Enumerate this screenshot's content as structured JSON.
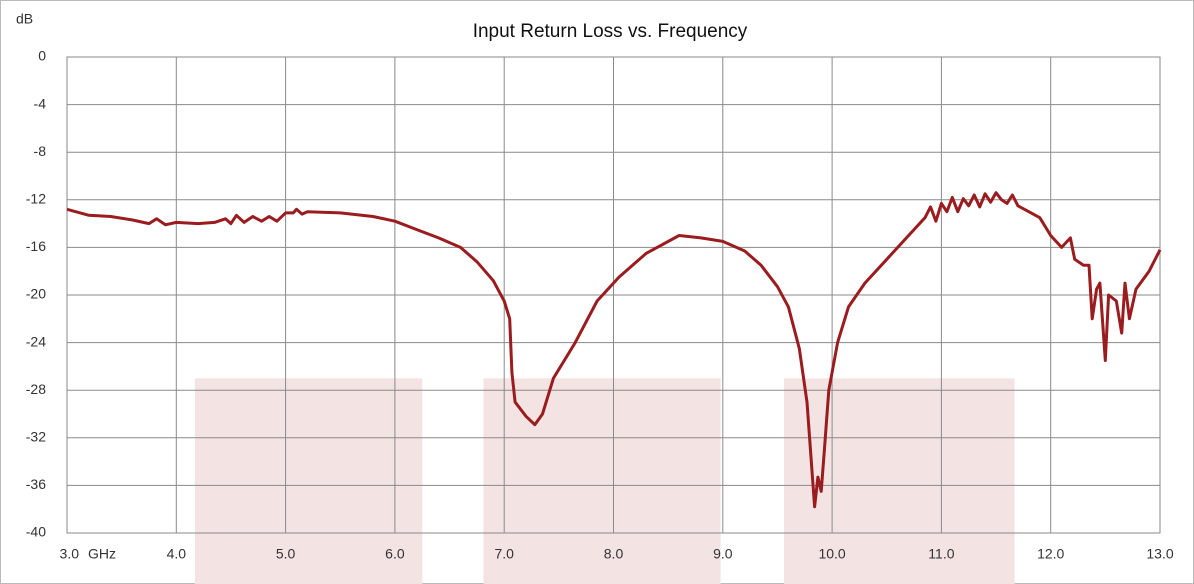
{
  "chart_data": {
    "type": "line",
    "title": "Input Return Loss vs. Frequency",
    "y_axis_label": "dB",
    "x_axis_label": "GHz",
    "xlim": [
      3,
      13
    ],
    "ylim": [
      -40,
      0
    ],
    "xticks": [
      {
        "value": 3,
        "label": "3.0"
      },
      {
        "value": 4,
        "label": "4.0"
      },
      {
        "value": 5,
        "label": "5.0"
      },
      {
        "value": 6,
        "label": "6.0"
      },
      {
        "value": 7,
        "label": "7.0"
      },
      {
        "value": 8,
        "label": "8.0"
      },
      {
        "value": 9,
        "label": "9.0"
      },
      {
        "value": 10,
        "label": "10.0"
      },
      {
        "value": 11,
        "label": "11.0"
      },
      {
        "value": 12,
        "label": "12.0"
      },
      {
        "value": 13,
        "label": "13.0"
      }
    ],
    "yticks": [
      0,
      -4,
      -8,
      -12,
      -16,
      -20,
      -24,
      -28,
      -32,
      -36,
      -40
    ],
    "grid": true,
    "shaded_regions": [
      {
        "x": [
          4.17,
          6.25
        ],
        "top": -27,
        "color": "#f3e3e3"
      },
      {
        "x": [
          6.81,
          8.98
        ],
        "top": -27,
        "color": "#f3e3e3"
      },
      {
        "x": [
          9.56,
          11.67
        ],
        "top": -27,
        "color": "#f3e3e3"
      }
    ],
    "series": [
      {
        "color": "#9b1c1f",
        "x": [
          3.0,
          3.2,
          3.4,
          3.6,
          3.75,
          3.82,
          3.9,
          4.0,
          4.2,
          4.35,
          4.45,
          4.5,
          4.55,
          4.62,
          4.7,
          4.78,
          4.85,
          4.92,
          5.0,
          5.07,
          5.1,
          5.15,
          5.2,
          5.5,
          5.8,
          6.0,
          6.2,
          6.4,
          6.6,
          6.75,
          6.9,
          7.0,
          7.05,
          7.07,
          7.1,
          7.2,
          7.28,
          7.35,
          7.45,
          7.65,
          7.85,
          8.05,
          8.3,
          8.6,
          8.8,
          9.0,
          9.2,
          9.35,
          9.5,
          9.6,
          9.7,
          9.77,
          9.84,
          9.87,
          9.9,
          9.93,
          9.97,
          10.05,
          10.15,
          10.3,
          10.5,
          10.7,
          10.85,
          10.9,
          10.95,
          11.0,
          11.05,
          11.1,
          11.15,
          11.2,
          11.25,
          11.3,
          11.35,
          11.4,
          11.45,
          11.5,
          11.55,
          11.6,
          11.65,
          11.7,
          11.8,
          11.9,
          12.0,
          12.1,
          12.18,
          12.22,
          12.3,
          12.35,
          12.38,
          12.42,
          12.45,
          12.5,
          12.53,
          12.6,
          12.65,
          12.68,
          12.72,
          12.78,
          12.9,
          13.0
        ],
        "values": [
          -12.8,
          -13.3,
          -13.4,
          -13.7,
          -14.0,
          -13.6,
          -14.1,
          -13.9,
          -14.0,
          -13.9,
          -13.6,
          -14.0,
          -13.3,
          -13.9,
          -13.4,
          -13.8,
          -13.4,
          -13.8,
          -13.1,
          -13.1,
          -12.8,
          -13.2,
          -13.0,
          -13.1,
          -13.4,
          -13.8,
          -14.5,
          -15.2,
          -16.0,
          -17.2,
          -18.8,
          -20.5,
          -22.0,
          -26.5,
          -29.0,
          -30.2,
          -30.9,
          -30.0,
          -27.0,
          -24.0,
          -20.5,
          -18.5,
          -16.5,
          -15.0,
          -15.2,
          -15.5,
          -16.3,
          -17.5,
          -19.3,
          -21.0,
          -24.5,
          -29.0,
          -37.8,
          -35.3,
          -36.5,
          -33.0,
          -28.0,
          -24.0,
          -21.0,
          -19.0,
          -17.0,
          -15.0,
          -13.5,
          -12.6,
          -13.8,
          -12.3,
          -13.0,
          -11.8,
          -13.0,
          -11.9,
          -12.5,
          -11.6,
          -12.6,
          -11.5,
          -12.2,
          -11.4,
          -12.0,
          -12.3,
          -11.6,
          -12.5,
          -13.0,
          -13.5,
          -15.0,
          -16.0,
          -15.2,
          -17.0,
          -17.5,
          -17.5,
          -22.0,
          -19.5,
          -19.0,
          -25.5,
          -20.0,
          -20.5,
          -23.2,
          -19.0,
          -22.0,
          -19.5,
          -18.0,
          -16.2
        ]
      }
    ]
  }
}
